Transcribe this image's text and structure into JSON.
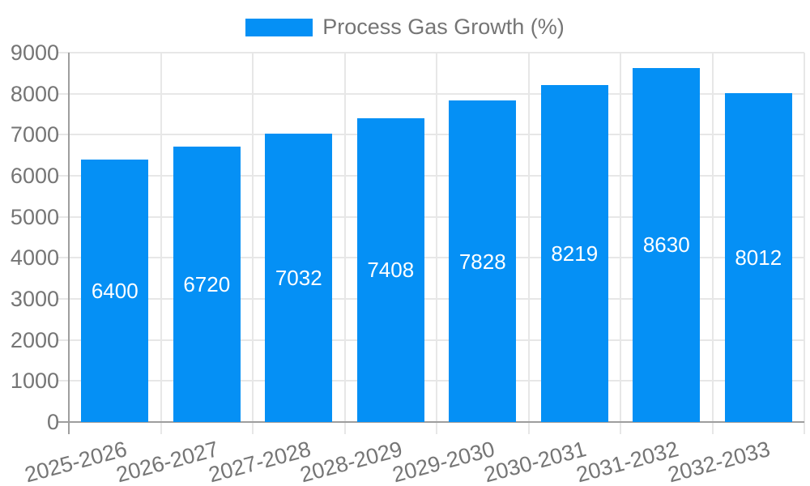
{
  "legend": {
    "label": "Process Gas Growth (%)"
  },
  "colors": {
    "bar": "#0590F5",
    "grid": "#E7E7E7",
    "axis": "#9E9E9E",
    "tick_label": "#757575",
    "data_label": "#FFFFFF",
    "background": "#FFFFFF"
  },
  "chart_data": {
    "type": "bar",
    "title": "Process Gas Growth (%)",
    "categories": [
      "2025-2026",
      "2026-2027",
      "2027-2028",
      "2028-2029",
      "2029-2030",
      "2030-2031",
      "2031-2032",
      "2032-2033"
    ],
    "series": [
      {
        "name": "Process Gas Growth (%)",
        "values": [
          6400,
          6720,
          7032,
          7408,
          7828,
          8219,
          8630,
          8012
        ]
      }
    ],
    "data_labels": [
      6400,
      6720,
      7032,
      7408,
      7828,
      8219,
      8630,
      8012
    ],
    "data_label_position": "inside-center",
    "xlabel": "",
    "ylabel": "",
    "ylim": [
      0,
      9000
    ],
    "yticks": [
      0,
      1000,
      2000,
      3000,
      4000,
      5000,
      6000,
      7000,
      8000,
      9000
    ],
    "grid": true,
    "legend_position": "top-center",
    "bar_color": "#0590F5"
  }
}
